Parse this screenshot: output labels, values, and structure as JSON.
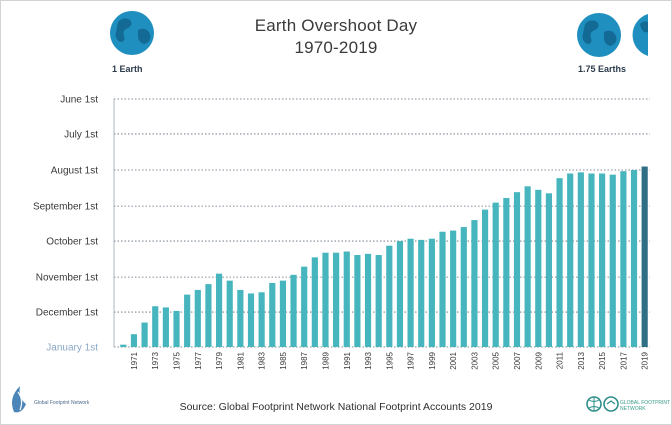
{
  "header": {
    "title": "Earth Overshoot Day",
    "subtitle": "1970-2019",
    "left_label": "1 Earth",
    "right_label": "1.75 Earths"
  },
  "footer": {
    "source": "Source: Global Footprint Network National Footprint Accounts 2019",
    "left_logo": "Global Footprint Network",
    "right_logo": "GLOBAL FOOTPRINT NETWORK"
  },
  "colors": {
    "bar": "#46b5bd",
    "bar_last": "#2e6f86",
    "grid": "#5b6a7a",
    "globe_ocean": "#1e8fbf",
    "globe_dark": "#136a94"
  },
  "chart_data": {
    "type": "bar",
    "title": "Earth Overshoot Day",
    "subtitle": "1970-2019",
    "xlabel": "",
    "ylabel": "",
    "y_axis_reversed": true,
    "ylim": [
      "January 1st",
      "June 1st"
    ],
    "y_ticks": [
      "June 1st",
      "July 1st",
      "August 1st",
      "September 1st",
      "October 1st",
      "November 1st",
      "December 1st",
      "January 1st"
    ],
    "x_tick_labels": [
      "1971",
      "1973",
      "1975",
      "1977",
      "1979",
      "1981",
      "1983",
      "1985",
      "1987",
      "1989",
      "1991",
      "1993",
      "1995",
      "1997",
      "1999",
      "2001",
      "2003",
      "2005",
      "2007",
      "2009",
      "2011",
      "2013",
      "2015",
      "2017",
      "2019"
    ],
    "categories": [
      "1970",
      "1971",
      "1972",
      "1973",
      "1974",
      "1975",
      "1976",
      "1977",
      "1978",
      "1979",
      "1980",
      "1981",
      "1982",
      "1983",
      "1984",
      "1985",
      "1986",
      "1987",
      "1988",
      "1989",
      "1990",
      "1991",
      "1992",
      "1993",
      "1994",
      "1995",
      "1996",
      "1997",
      "1998",
      "1999",
      "2000",
      "2001",
      "2002",
      "2003",
      "2004",
      "2005",
      "2006",
      "2007",
      "2008",
      "2009",
      "2010",
      "2011",
      "2012",
      "2013",
      "2014",
      "2015",
      "2016",
      "2017",
      "2018",
      "2019"
    ],
    "values": [
      "December 29",
      "December 20",
      "December 10",
      "November 26",
      "November 27",
      "November 30",
      "November 16",
      "November 12",
      "November 7",
      "October 29",
      "November 4",
      "November 12",
      "November 15",
      "November 14",
      "November 6",
      "November 4",
      "October 30",
      "October 23",
      "October 15",
      "October 11",
      "October 11",
      "October 10",
      "October 13",
      "October 12",
      "October 13",
      "October 5",
      "October 1",
      "September 29",
      "September 30",
      "September 29",
      "September 23",
      "September 22",
      "September 19",
      "September 13",
      "September 4",
      "August 29",
      "August 25",
      "August 20",
      "August 15",
      "August 18",
      "August 21",
      "August 8",
      "August 4",
      "August 3",
      "August 4",
      "August 4",
      "August 5",
      "August 2",
      "August 1",
      "July 29"
    ]
  }
}
